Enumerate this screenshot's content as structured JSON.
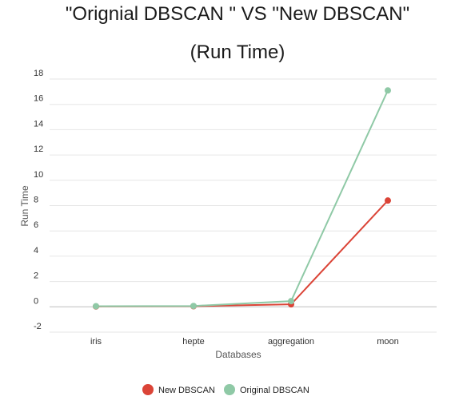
{
  "chart_data": {
    "type": "line",
    "title_line1": "\"Orignial DBSCAN \" VS \"New DBSCAN\"",
    "title_line2": "(Run Time)",
    "xlabel": "Databases",
    "ylabel": "Run Time",
    "categories": [
      "iris",
      "hepte",
      "aggregation",
      "moon"
    ],
    "ylim": [
      -2,
      18
    ],
    "yticks": [
      -2,
      0,
      2,
      4,
      6,
      8,
      10,
      12,
      14,
      16,
      18
    ],
    "grid": true,
    "legend_position": "bottom",
    "series": [
      {
        "name": "New DBSCAN",
        "color": "#db4437",
        "values": [
          0.03,
          0.05,
          0.2,
          8.4
        ]
      },
      {
        "name": "Original DBSCAN",
        "color": "#8fc9a6",
        "values": [
          0.05,
          0.07,
          0.45,
          17.1
        ]
      }
    ]
  }
}
